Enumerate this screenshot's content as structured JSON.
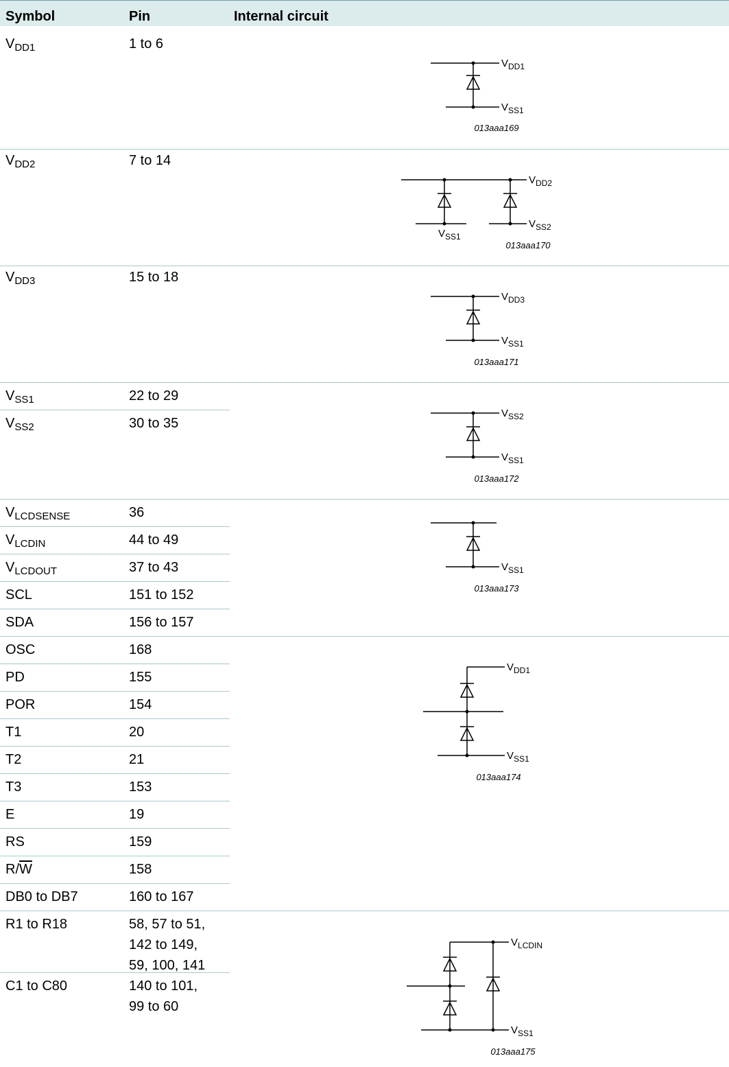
{
  "header": {
    "symbol": "Symbol",
    "pin": "Pin",
    "circuit": "Internal circuit"
  },
  "rows": [
    {
      "sym": "V",
      "sub": "DD1",
      "pin": "1 to 6"
    },
    {
      "sym": "V",
      "sub": "DD2",
      "pin": "7 to 14"
    },
    {
      "sym": "V",
      "sub": "DD3",
      "pin": "15 to 18"
    },
    {
      "sym": "V",
      "sub": "SS1",
      "pin": "22 to 29"
    },
    {
      "sym": "V",
      "sub": "SS2",
      "pin": "30 to 35"
    },
    {
      "sym": "V",
      "sub": "LCDSENSE",
      "pin": "36"
    },
    {
      "sym": "V",
      "sub": "LCDIN",
      "pin": "44 to 49"
    },
    {
      "sym": "V",
      "sub": "LCDOUT",
      "pin": "37 to 43"
    },
    {
      "sym": "SCL",
      "sub": "",
      "pin": "151 to 152"
    },
    {
      "sym": "SDA",
      "sub": "",
      "pin": "156 to 157"
    },
    {
      "sym": "OSC",
      "sub": "",
      "pin": "168"
    },
    {
      "sym": "PD",
      "sub": "",
      "pin": "155"
    },
    {
      "sym": "POR",
      "sub": "",
      "pin": "154"
    },
    {
      "sym": "T1",
      "sub": "",
      "pin": "20"
    },
    {
      "sym": "T2",
      "sub": "",
      "pin": "21"
    },
    {
      "sym": "T3",
      "sub": "",
      "pin": "153"
    },
    {
      "sym": "E",
      "sub": "",
      "pin": "19"
    },
    {
      "sym": "RS",
      "sub": "",
      "pin": "159"
    },
    {
      "sym": "R/",
      "sub": "",
      "ovl": "W",
      "pin": "158"
    },
    {
      "sym": "DB0 to DB7",
      "sub": "",
      "pin": "160 to 167"
    },
    {
      "sym": "R1 to R18",
      "sub": "",
      "pin_lines": [
        "58, 57 to 51,",
        "142 to 149,",
        "59, 100, 141"
      ]
    },
    {
      "sym": "C1 to C80",
      "sub": "",
      "pin_lines": [
        "140 to 101,",
        "99 to 60"
      ]
    }
  ],
  "circuits": [
    {
      "labels": [
        {
          "main": "V",
          "sub": "DD1"
        },
        {
          "main": "V",
          "sub": "SS1"
        }
      ],
      "figure": "013aaa169"
    },
    {
      "labels": [
        {
          "main": "V",
          "sub": "DD2"
        },
        {
          "main": "V",
          "sub": "SS2"
        },
        {
          "main": "V",
          "sub": "SS1"
        }
      ],
      "figure": "013aaa170"
    },
    {
      "labels": [
        {
          "main": "V",
          "sub": "DD3"
        },
        {
          "main": "V",
          "sub": "SS1"
        }
      ],
      "figure": "013aaa171"
    },
    {
      "labels": [
        {
          "main": "V",
          "sub": "SS2"
        },
        {
          "main": "V",
          "sub": "SS1"
        }
      ],
      "figure": "013aaa172"
    },
    {
      "labels": [
        {
          "main": "V",
          "sub": "SS1"
        }
      ],
      "figure": "013aaa173"
    },
    {
      "labels": [
        {
          "main": "V",
          "sub": "DD1"
        },
        {
          "main": "V",
          "sub": "SS1"
        }
      ],
      "figure": "013aaa174"
    },
    {
      "labels": [
        {
          "main": "V",
          "sub": "LCDIN"
        },
        {
          "main": "V",
          "sub": "SS1"
        }
      ],
      "figure": "013aaa175"
    }
  ]
}
